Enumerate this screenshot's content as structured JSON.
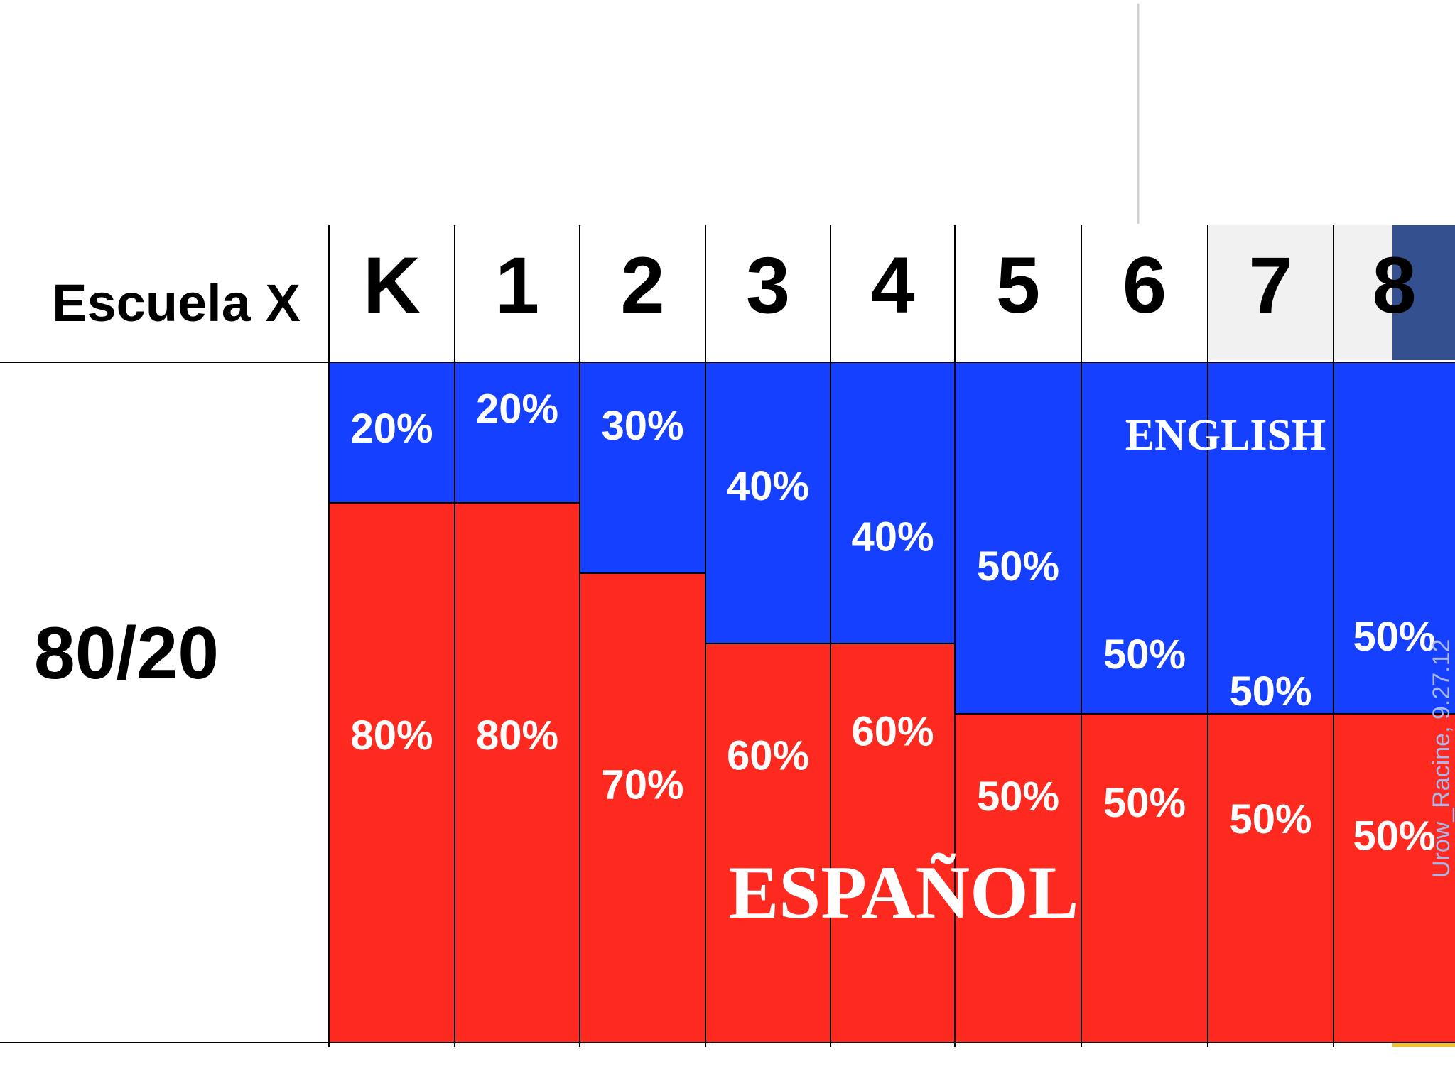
{
  "corner_label": "Escuela X",
  "row_label": "80/20",
  "colors": {
    "english": "#1540ff",
    "spanish": "#ff2a1f",
    "grid": "#000000",
    "accent_navy": "#34508f",
    "accent_yellow": "#f2c027",
    "credit": "#a9b7ea"
  },
  "chart_data": {
    "type": "stacked-bar",
    "categories": [
      "K",
      "1",
      "2",
      "3",
      "4",
      "5",
      "6",
      "7",
      "8"
    ],
    "series": [
      {
        "name": "ENGLISH",
        "color": "#1540ff",
        "values": [
          20,
          20,
          30,
          40,
          40,
          50,
          50,
          50,
          50
        ],
        "labels": [
          "20%",
          "20%",
          "30%",
          "40%",
          "40%",
          "50%",
          "50%",
          "50%",
          "50%"
        ]
      },
      {
        "name": "ESPAÑOL",
        "color": "#ff2a1f",
        "values": [
          80,
          80,
          70,
          60,
          60,
          50,
          50,
          50,
          50
        ],
        "labels": [
          "80%",
          "80%",
          "70%",
          "60%",
          "60%",
          "50%",
          "50%",
          "50%",
          "50%"
        ]
      }
    ],
    "stack_order": "ENGLISH on top, ESPAÑOL at bottom",
    "ylim": [
      0,
      100
    ]
  },
  "credit": "Urow_Racine, 9.27.12"
}
